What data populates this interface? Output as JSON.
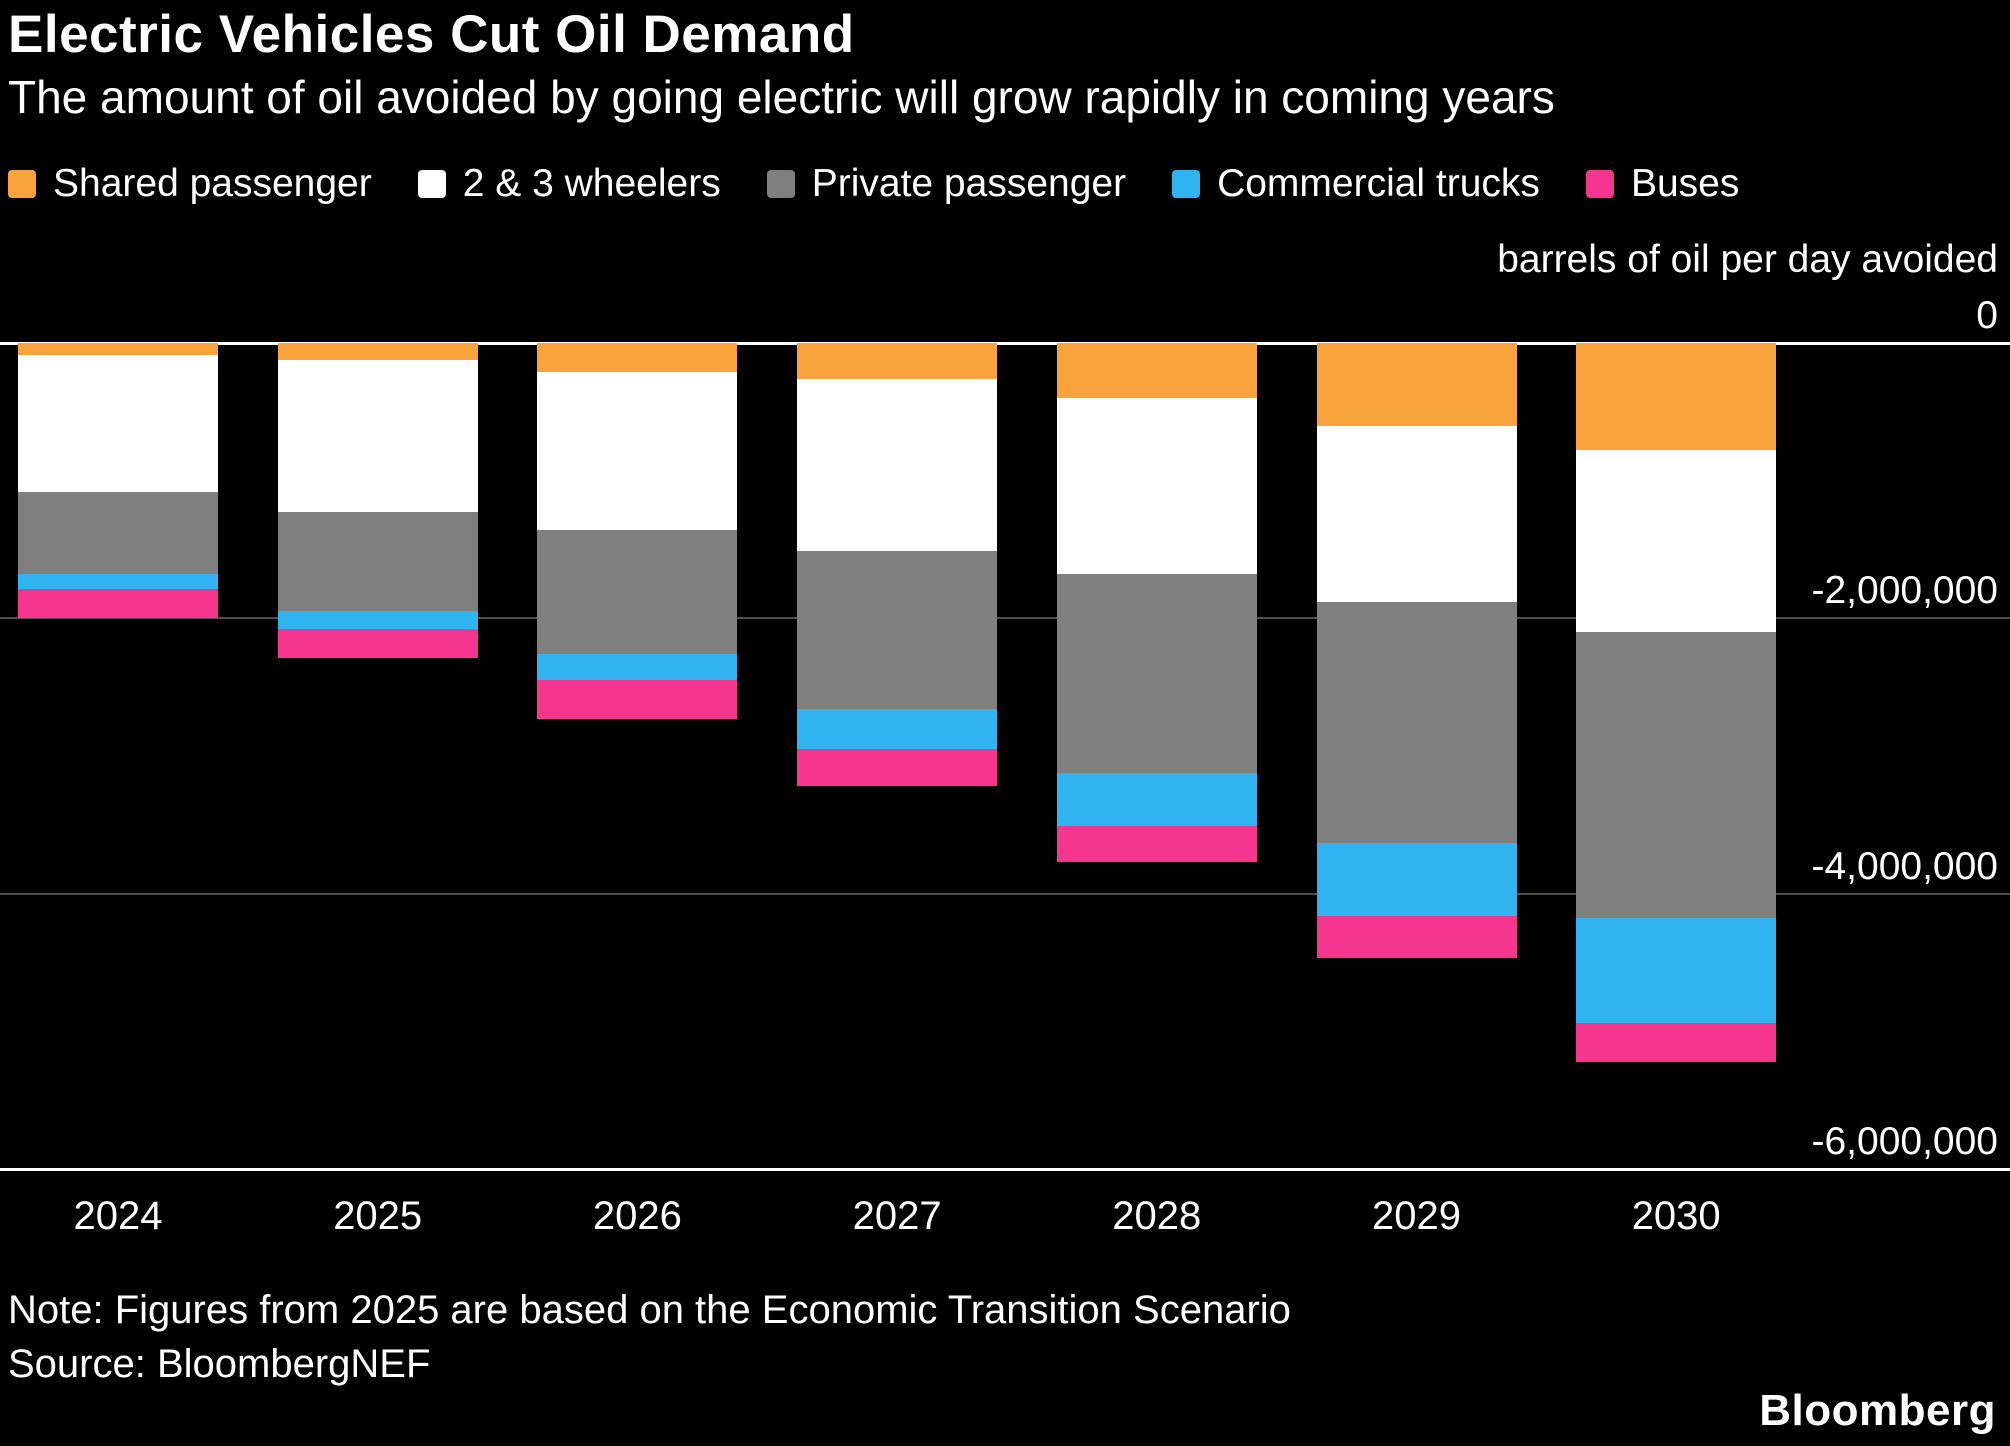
{
  "title": "Electric Vehicles Cut Oil Demand",
  "subtitle": "The amount of oil avoided by going electric will grow rapidly in coming years",
  "note": "Note: Figures from 2025 are based on the Economic Transition Scenario",
  "source": "Source: BloombergNEF",
  "brand": "Bloomberg",
  "colors": {
    "background": "#000000",
    "text": "#ffffff",
    "gridline_minor": "#4d4d4d",
    "gridline_major": "#ffffff",
    "shared_passenger": "#f8a33b",
    "two_three_wheelers": "#ffffff",
    "private_passenger": "#7f7f7f",
    "commercial_trucks": "#2fb4f1",
    "buses": "#f5368f"
  },
  "chart_data": {
    "type": "bar",
    "stacked": true,
    "direction": "negative",
    "title": "Electric Vehicles Cut Oil Demand",
    "subtitle": "The amount of oil avoided by going electric will grow rapidly in coming years",
    "ylabel": "barrels of oil per day avoided",
    "xlabel": "",
    "grid": true,
    "legend_position": "top",
    "ylim": [
      -6000000,
      0
    ],
    "yticks": [
      0,
      -2000000,
      -4000000,
      -6000000
    ],
    "ytick_labels": [
      "0",
      "-2,000,000",
      "-4,000,000",
      "-6,000,000"
    ],
    "categories": [
      "2024",
      "2025",
      "2026",
      "2027",
      "2028",
      "2029",
      "2030"
    ],
    "series": [
      {
        "name": "Shared passenger",
        "color": "#f8a33b",
        "values": [
          -90000,
          -120000,
          -210000,
          -260000,
          -400000,
          -600000,
          -780000
        ]
      },
      {
        "name": "2 & 3 wheelers",
        "color": "#ffffff",
        "values": [
          -990000,
          -1110000,
          -1150000,
          -1250000,
          -1280000,
          -1280000,
          -1320000
        ]
      },
      {
        "name": "Private passenger",
        "color": "#7f7f7f",
        "values": [
          -600000,
          -720000,
          -900000,
          -1150000,
          -1440000,
          -1750000,
          -2080000
        ]
      },
      {
        "name": "Commercial trucks",
        "color": "#2fb4f1",
        "values": [
          -110000,
          -130000,
          -190000,
          -290000,
          -390000,
          -530000,
          -760000
        ]
      },
      {
        "name": "Buses",
        "color": "#f5368f",
        "values": [
          -210000,
          -210000,
          -280000,
          -270000,
          -260000,
          -310000,
          -280000
        ]
      }
    ]
  }
}
